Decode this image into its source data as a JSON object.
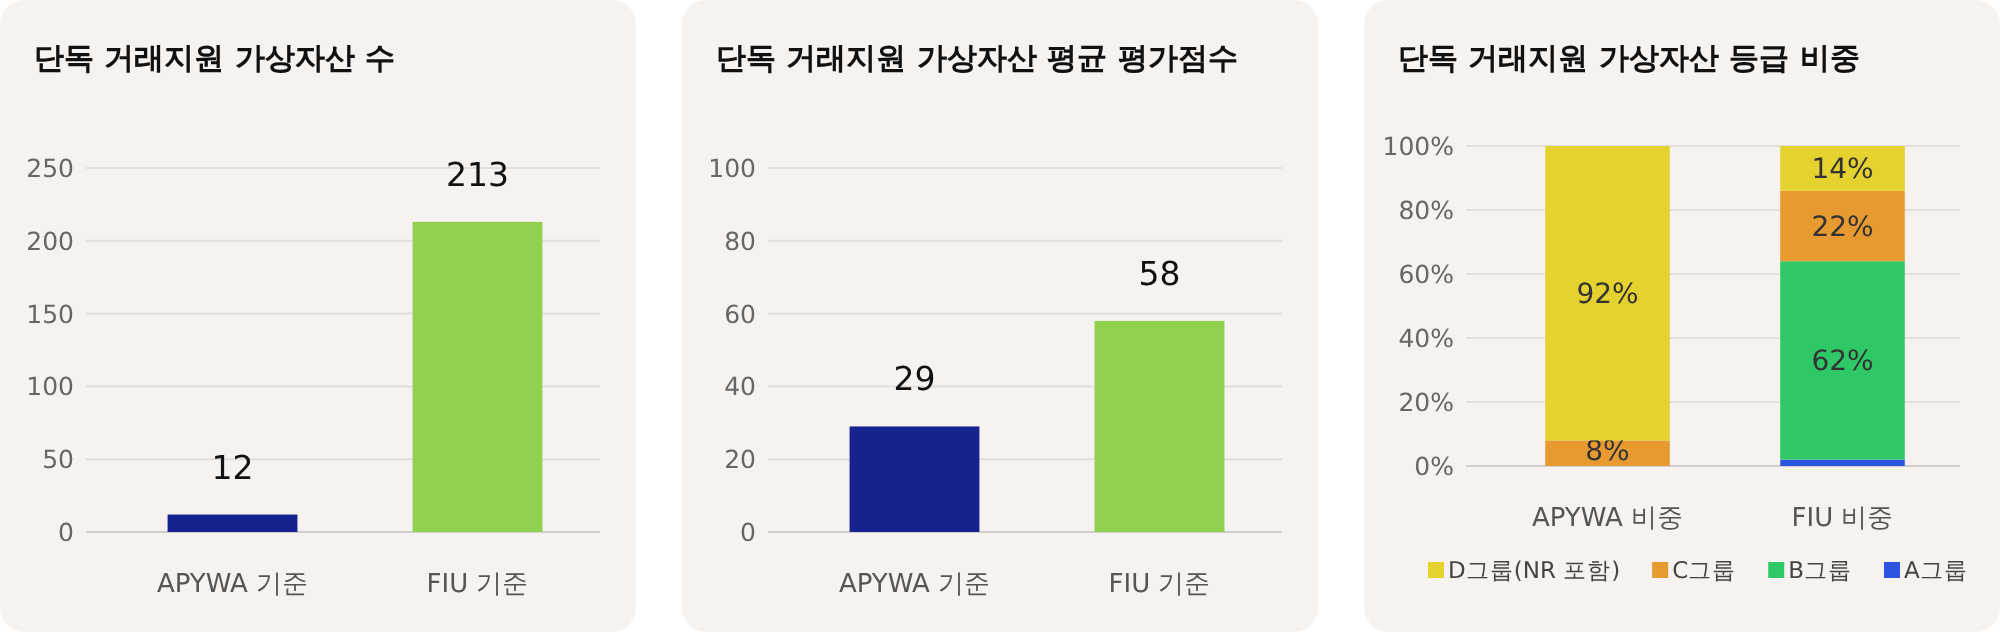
{
  "chart_data": [
    {
      "type": "bar",
      "title": "단독 거래지원 가상자산 수",
      "categories": [
        "APYWA 기준",
        "FIU 기준"
      ],
      "values": [
        12,
        213
      ],
      "colors": [
        "#16238f",
        "#92d050"
      ],
      "ylim": [
        0,
        250
      ],
      "yticks": [
        0,
        50,
        100,
        150,
        200,
        250
      ],
      "grid": "y",
      "data_labels": true
    },
    {
      "type": "bar",
      "title": "단독 거래지원 가상자산 평균 평가점수",
      "categories": [
        "APYWA 기준",
        "FIU 기준"
      ],
      "values": [
        29,
        58
      ],
      "colors": [
        "#16238f",
        "#92d050"
      ],
      "ylim": [
        0,
        100
      ],
      "yticks": [
        0,
        20,
        40,
        60,
        80,
        100
      ],
      "grid": "y",
      "data_labels": true
    },
    {
      "type": "bar",
      "title": "단독 거래지원 가상자산 등급 비중",
      "categories": [
        "APYWA 비중",
        "FIU 비중"
      ],
      "stacked": true,
      "legend": "bottom",
      "grid": "y",
      "ylim": [
        0,
        100
      ],
      "yticks": [
        {
          "value": 0,
          "label": "0%"
        },
        {
          "value": 20,
          "label": "20%"
        },
        {
          "value": 40,
          "label": "40%"
        },
        {
          "value": 60,
          "label": "60%"
        },
        {
          "value": 80,
          "label": "80%"
        },
        {
          "value": 100,
          "label": "100%"
        }
      ],
      "series": [
        {
          "name": "A그룹",
          "color": "#2b55e0",
          "values": [
            0,
            2
          ],
          "value_labels": [
            null,
            null
          ]
        },
        {
          "name": "B그룹",
          "color": "#2ec866",
          "values": [
            0,
            62
          ],
          "value_labels": [
            null,
            "62%"
          ]
        },
        {
          "name": "C그룹",
          "color": "#e69a30",
          "values": [
            8,
            22
          ],
          "value_labels": [
            "8%",
            "22%"
          ]
        },
        {
          "name": "D그룹(NR 포함)",
          "color": "#e5d22f",
          "values": [
            92,
            14
          ],
          "value_labels": [
            "92%",
            "14%"
          ]
        }
      ]
    }
  ]
}
